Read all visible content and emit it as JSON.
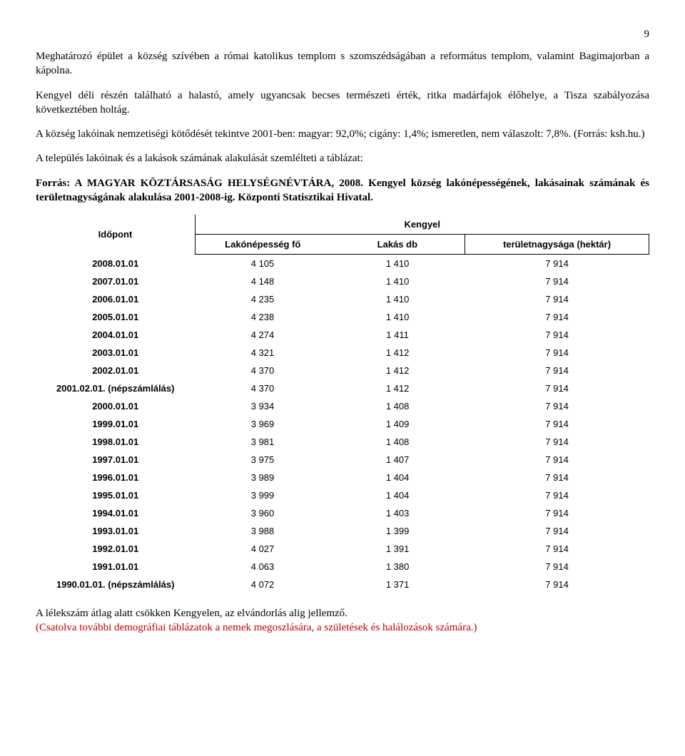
{
  "page_number": "9",
  "paragraph1": "Meghatározó épület a község szívében a római katolikus templom s szomszédságában a református templom, valamint Bagimajorban a kápolna.",
  "paragraph2": "Kengyel déli részén található a halastó, amely ugyancsak becses természeti érték, ritka madárfajok élőhelye, a Tisza szabályozása következtében holtág.",
  "paragraph3": "A község lakóinak nemzetiségi kötődését tekintve 2001-ben: magyar: 92,0%; cigány: 1,4%; ismeretlen, nem válaszolt: 7,8%. (Forrás: ksh.hu.)",
  "paragraph4": "A település lakóinak és a lakások számának alakulását szemlélteti a táblázat:",
  "source_line": "Forrás: A MAGYAR KÖZTÁRSASÁG HELYSÉGNÉVTÁRA, 2008. Kengyel község lakónépességének, lakásainak számának és területnagyságának alakulása 2001-2008-ig. Központi Statisztikai Hivatal.",
  "table": {
    "kengyel_label": "Kengyel",
    "columns": [
      "Időpont",
      "Lakónépesség fő",
      "Lakás db",
      "területnagysága (hektár)"
    ],
    "rows": [
      [
        "2008.01.01",
        "4 105",
        "1 410",
        "7 914"
      ],
      [
        "2007.01.01",
        "4 148",
        "1 410",
        "7 914"
      ],
      [
        "2006.01.01",
        "4 235",
        "1 410",
        "7 914"
      ],
      [
        "2005.01.01",
        "4 238",
        "1 410",
        "7 914"
      ],
      [
        "2004.01.01",
        "4 274",
        "1 411",
        "7 914"
      ],
      [
        "2003.01.01",
        "4 321",
        "1 412",
        "7 914"
      ],
      [
        "2002.01.01",
        "4 370",
        "1 412",
        "7 914"
      ],
      [
        "2001.02.01. (népszámlálás)",
        "4 370",
        "1 412",
        "7 914"
      ],
      [
        "2000.01.01",
        "3 934",
        "1 408",
        "7 914"
      ],
      [
        "1999.01.01",
        "3 969",
        "1 409",
        "7 914"
      ],
      [
        "1998.01.01",
        "3 981",
        "1 408",
        "7 914"
      ],
      [
        "1997.01.01",
        "3 975",
        "1 407",
        "7 914"
      ],
      [
        "1996.01.01",
        "3 989",
        "1 404",
        "7 914"
      ],
      [
        "1995.01.01",
        "3 999",
        "1 404",
        "7 914"
      ],
      [
        "1994.01.01",
        "3 960",
        "1 403",
        "7 914"
      ],
      [
        "1993.01.01",
        "3 988",
        "1 399",
        "7 914"
      ],
      [
        "1992.01.01",
        "4 027",
        "1 391",
        "7 914"
      ],
      [
        "1991.01.01",
        "4 063",
        "1 380",
        "7 914"
      ],
      [
        "1990.01.01. (népszámlálás)",
        "4 072",
        "1 371",
        "7 914"
      ]
    ]
  },
  "closing_black": "A lélekszám átlag alatt csökken Kengyelen, az elvándorlás alig jellemző.",
  "closing_red": "(Csatolva további demográfiai táblázatok a nemek megoszlására, a születések és halálozások számára.)"
}
